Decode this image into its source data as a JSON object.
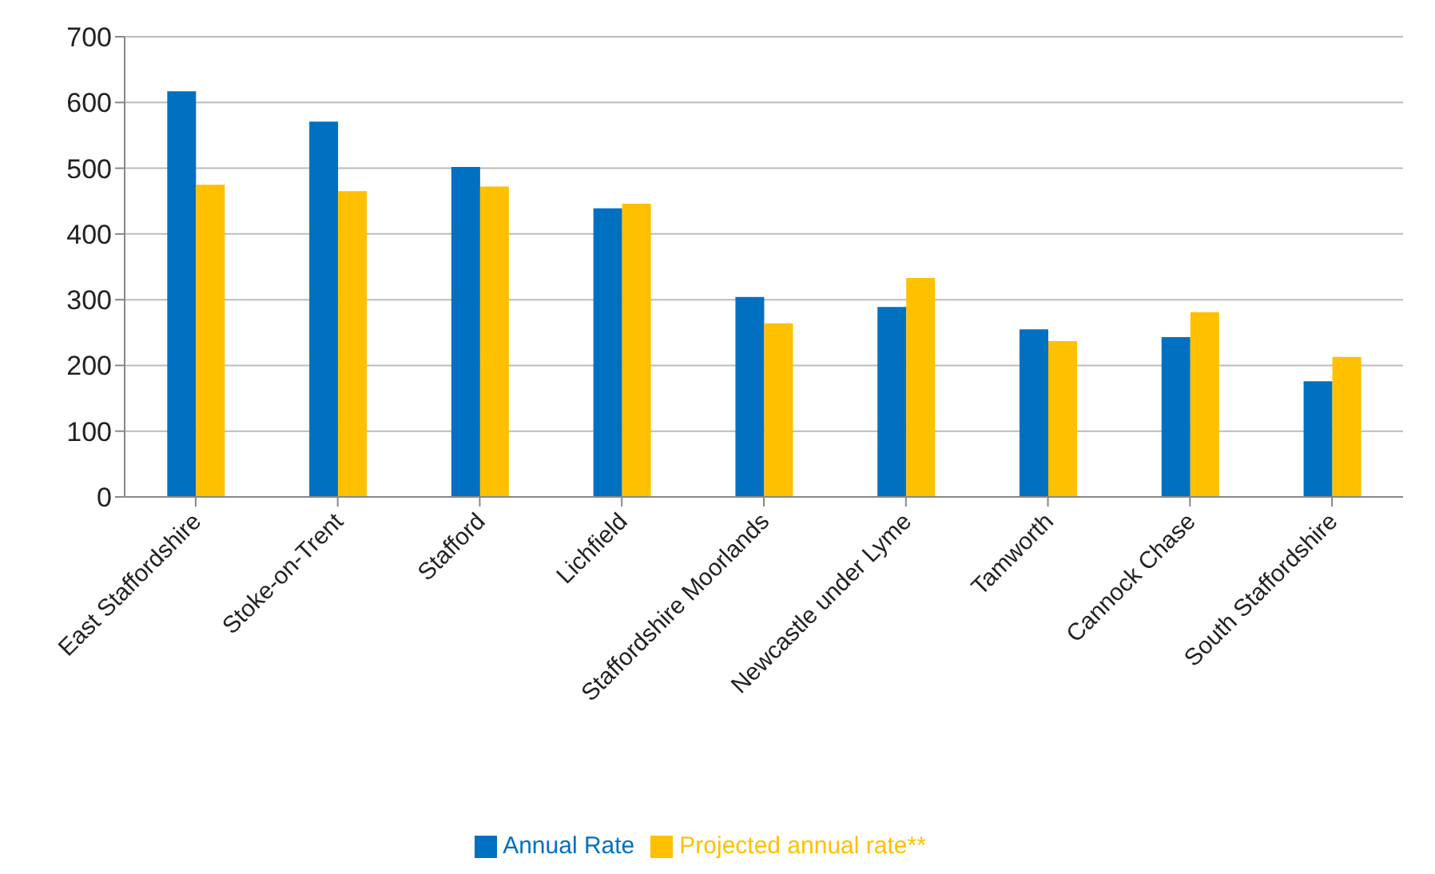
{
  "chart_data": {
    "type": "bar",
    "categories": [
      "East Staffordshire",
      "Stoke-on-Trent",
      "Stafford",
      "Lichfield",
      "Staffordshire Moorlands",
      "Newcastle under Lyme",
      "Tamworth",
      "Cannock Chase",
      "South Staffordshire"
    ],
    "series": [
      {
        "name": "Annual Rate",
        "color": "#0070c0",
        "values": [
          617,
          571,
          502,
          439,
          304,
          289,
          255,
          243,
          176
        ]
      },
      {
        "name": "Projected annual rate**",
        "color": "#ffc000",
        "values": [
          475,
          465,
          472,
          446,
          264,
          333,
          237,
          281,
          213
        ]
      }
    ],
    "ylim": [
      0,
      700
    ],
    "yticks": [
      0,
      100,
      200,
      300,
      400,
      500,
      600,
      700
    ],
    "grid": "y",
    "legend": "bottom"
  }
}
